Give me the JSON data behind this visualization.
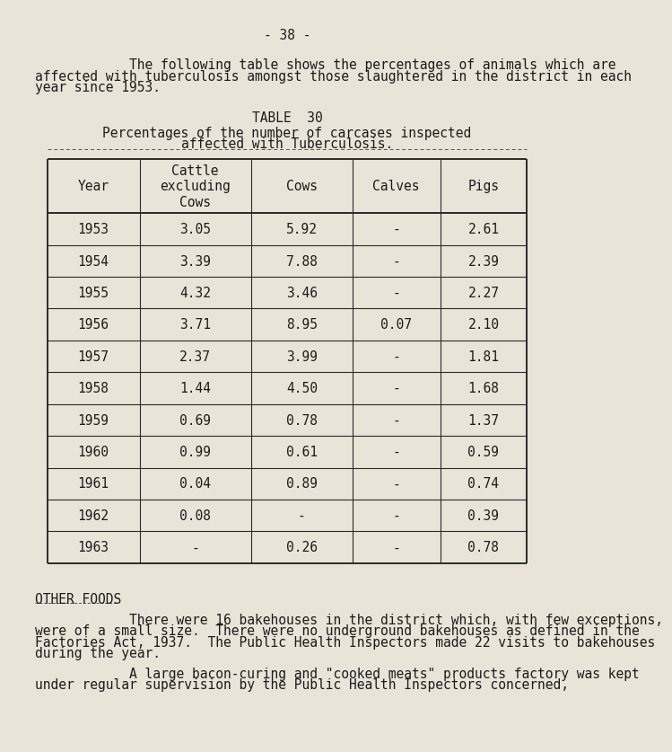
{
  "bg_color": "#e8e4d8",
  "page_number": "- 38 -",
  "intro_indent": "            The following table shows the percentages of animals which are",
  "intro_line2": "affected with tuberculosis amongst those slaughtered in the district in each",
  "intro_line3": "year since 1953.",
  "table_title": "TABLE  30",
  "subtitle_line1": "Percentages of the number of carcases inspected",
  "subtitle_line2": "affected with Tuberculosis.",
  "col_headers": [
    "Year",
    "Cattle\nexcluding\nCows",
    "Cows",
    "Calves",
    "Pigs"
  ],
  "rows": [
    [
      "1953",
      "3.05",
      "5.92",
      "-",
      "2.61"
    ],
    [
      "1954",
      "3.39",
      "7.88",
      "-",
      "2.39"
    ],
    [
      "1955",
      "4.32",
      "3.46",
      "-",
      "2.27"
    ],
    [
      "1956",
      "3.71",
      "8.95",
      "0.07",
      "2.10"
    ],
    [
      "1957",
      "2.37",
      "3.99",
      "-",
      "1.81"
    ],
    [
      "1958",
      "1.44",
      "4.50",
      "-",
      "1.68"
    ],
    [
      "1959",
      "0.69",
      "0.78",
      "-",
      "1.37"
    ],
    [
      "1960",
      "0.99",
      "0.61",
      "-",
      "0.59"
    ],
    [
      "1961",
      "0.04",
      "0.89",
      "-",
      "0.74"
    ],
    [
      "1962",
      "0.08",
      "-",
      "-",
      "0.39"
    ],
    [
      "1963",
      "-",
      "0.26",
      "-",
      "0.78"
    ]
  ],
  "section_header": "OTHER FOODS",
  "para1_indent": "            There were 16 bakehouses in the district which, with few exceptions,",
  "para1_line2": "were of a small size.  There were no underground bakehouses as defined in the",
  "para1_line3": "Factories Act, 1937.  The Public Health Inspectors made 22 visits to bakehouses",
  "para1_line4": "during the year.",
  "para2_indent": "            A large bacon-curing and \"cooked meats\" products factory was kept",
  "para2_line2": "under regular supervision by the Public Health Inspectors concerned,"
}
